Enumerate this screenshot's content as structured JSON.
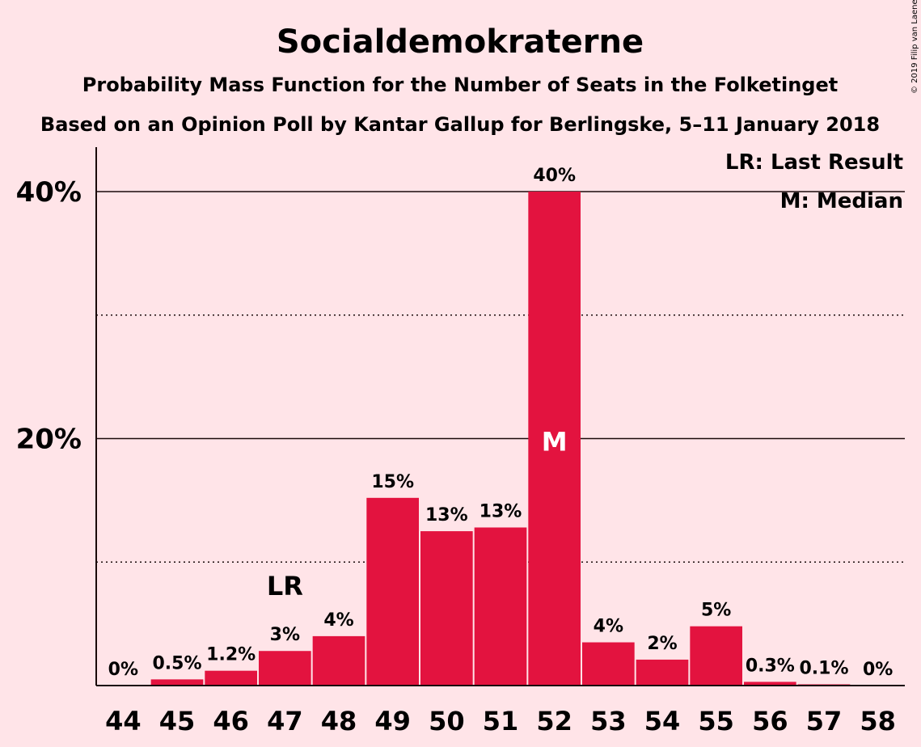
{
  "chart_data": {
    "type": "bar",
    "title": "Socialdemokraterne",
    "subtitle": "Probability Mass Function for the Number of Seats in the Folketinget",
    "subtitle2": "Based on an Opinion Poll by Kantar Gallup for Berlingske, 5–11 January 2018",
    "copyright": "© 2019 Filip van Laenen",
    "categories": [
      "44",
      "45",
      "46",
      "47",
      "48",
      "49",
      "50",
      "51",
      "52",
      "53",
      "54",
      "55",
      "56",
      "57",
      "58"
    ],
    "values": [
      0,
      0.5,
      1.2,
      2.8,
      4.0,
      15.2,
      12.5,
      12.8,
      40.0,
      3.5,
      2.1,
      4.8,
      0.3,
      0.1,
      0
    ],
    "value_labels": [
      "0%",
      "0.5%",
      "1.2%",
      "3%",
      "4%",
      "15%",
      "13%",
      "13%",
      "40%",
      "4%",
      "2%",
      "5%",
      "0.3%",
      "0.1%",
      "0%"
    ],
    "ylim": [
      0,
      43.6
    ],
    "yticks": [
      {
        "value": 20,
        "label": "20%"
      },
      {
        "value": 40,
        "label": "40%"
      }
    ],
    "minor_gridlines": [
      10,
      30
    ],
    "last_result": {
      "category": "47",
      "label": "LR"
    },
    "median": {
      "category": "52",
      "label": "M"
    },
    "legend": [
      "LR: Last Result",
      "M: Median"
    ],
    "legend_position": "top-right",
    "bar_color": "#e3133f",
    "background_color": "#ffe4e8"
  }
}
